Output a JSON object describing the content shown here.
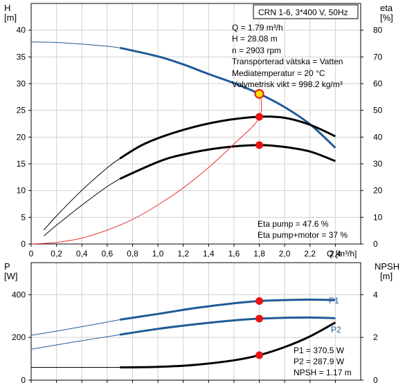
{
  "title_box": "CRN 1-6, 3*400 V, 50Hz",
  "info_lines": [
    "Q = 1.79 m³/h",
    "H = 28.08 m",
    "n = 2903 rpm",
    "Transporterad vätska = Vatten",
    "Mediatemperatur = 20 °C",
    "Volymetrisk vikt = 998.2 kg/m³"
  ],
  "eta_lines": [
    "Eta pump = 47.6 %",
    "Eta pump+motor = 37 %"
  ],
  "power_lines": [
    "P1 = 370.5 W",
    "P2 = 287.9 W",
    "NPSH = 1.17 m"
  ],
  "colors": {
    "blue": "#1f5a96",
    "black": "#000000",
    "red": "#e81414",
    "system": "#e83030",
    "frame": "#000000"
  },
  "chart_data": [
    {
      "type": "line",
      "axes": {
        "x": {
          "label": "Q [m³/h]",
          "range": [
            0,
            2.6
          ],
          "ticks": [
            0,
            0.2,
            0.4,
            0.6,
            0.8,
            1.0,
            1.2,
            1.4,
            1.6,
            1.8,
            2.0,
            2.2,
            2.4
          ],
          "tick_labels": [
            "0",
            "0,2",
            "0,4",
            "0,6",
            "0,8",
            "1,0",
            "1,2",
            "1,4",
            "1,6",
            "1,8",
            "2,0",
            "2,2",
            "2,4"
          ]
        },
        "y_left": {
          "label_top": "H",
          "label_unit": "[m]",
          "range": [
            0,
            45
          ],
          "ticks": [
            0,
            5,
            10,
            15,
            20,
            25,
            30,
            35,
            40
          ],
          "tick_labels": [
            "0",
            "5",
            "10",
            "15",
            "20",
            "25",
            "30",
            "35",
            "40"
          ]
        },
        "y_right": {
          "label_top": "eta",
          "label_unit": "[%]",
          "range": [
            0,
            90
          ],
          "ticks": [
            0,
            10,
            20,
            30,
            40,
            50,
            60,
            70,
            80
          ],
          "tick_labels": [
            "0",
            "10",
            "20",
            "30",
            "40",
            "50",
            "60",
            "70",
            "80"
          ]
        }
      },
      "grid": true,
      "series": [
        {
          "axis": "left",
          "color": "blue",
          "thin": [
            [
              0,
              37.8
            ],
            [
              0.2,
              37.7
            ],
            [
              0.4,
              37.4
            ],
            [
              0.6,
              37.0
            ],
            [
              0.7,
              36.7
            ]
          ],
          "thick": [
            [
              0.7,
              36.7
            ],
            [
              1.0,
              35.1
            ],
            [
              1.2,
              33.6
            ],
            [
              1.4,
              31.8
            ],
            [
              1.6,
              30.1
            ],
            [
              1.8,
              28.1
            ],
            [
              2.0,
              25.6
            ],
            [
              2.2,
              22.4
            ],
            [
              2.4,
              18.0
            ]
          ]
        },
        {
          "axis": "right",
          "color": "black",
          "thin": [
            [
              0.1,
              5.2
            ],
            [
              0.2,
              10.5
            ],
            [
              0.4,
              20.1
            ],
            [
              0.6,
              28.5
            ],
            [
              0.7,
              32.0
            ]
          ],
          "thick": [
            [
              0.7,
              32.0
            ],
            [
              0.9,
              37.6
            ],
            [
              1.2,
              42.7
            ],
            [
              1.5,
              46.0
            ],
            [
              1.8,
              47.6
            ],
            [
              2.0,
              47.2
            ],
            [
              2.2,
              44.6
            ],
            [
              2.4,
              40.3
            ]
          ]
        },
        {
          "axis": "right",
          "color": "black",
          "thin": [
            [
              0.1,
              3.0
            ],
            [
              0.2,
              7.0
            ],
            [
              0.4,
              14.5
            ],
            [
              0.6,
              21.5
            ],
            [
              0.7,
              24.4
            ]
          ],
          "thick": [
            [
              0.7,
              24.4
            ],
            [
              1.0,
              30.7
            ],
            [
              1.2,
              33.5
            ],
            [
              1.5,
              36.0
            ],
            [
              1.8,
              37.0
            ],
            [
              2.0,
              36.3
            ],
            [
              2.2,
              34.6
            ],
            [
              2.4,
              31.0
            ]
          ]
        },
        {
          "axis": "left",
          "color": "system",
          "thin": [
            [
              0,
              0
            ],
            [
              0.2,
              0.3
            ],
            [
              0.4,
              1.1
            ],
            [
              0.6,
              2.6
            ],
            [
              0.8,
              4.6
            ],
            [
              1.0,
              7.3
            ],
            [
              1.2,
              10.5
            ],
            [
              1.4,
              14.3
            ],
            [
              1.6,
              18.7
            ],
            [
              1.8,
              23.6
            ],
            [
              1.81,
              28.08
            ]
          ],
          "thick": []
        }
      ],
      "markers": [
        {
          "x": 1.8,
          "y": 28.08,
          "axis": "left",
          "style": "operating"
        },
        {
          "x": 1.8,
          "y": 47.6,
          "axis": "right",
          "style": "dot"
        },
        {
          "x": 1.8,
          "y": 37.0,
          "axis": "right",
          "style": "dot"
        }
      ]
    },
    {
      "type": "line",
      "axes": {
        "y_left": {
          "label_top": "P",
          "label_unit": "[W]",
          "range": [
            0,
            550
          ],
          "ticks": [
            0,
            200,
            400
          ],
          "tick_labels": [
            "0",
            "200",
            "400"
          ]
        },
        "y_right": {
          "label_top": "NPSH",
          "label_unit": "[m]",
          "range": [
            0,
            5.5
          ],
          "ticks": [
            0,
            2,
            4
          ],
          "tick_labels": [
            "0",
            "2",
            "4"
          ]
        }
      },
      "grid": true,
      "series_labels": [
        "P1",
        "P2"
      ],
      "series": [
        {
          "name": "P1",
          "axis": "left",
          "color": "blue",
          "thin": [
            [
              0,
              210
            ],
            [
              0.35,
              245
            ],
            [
              0.7,
              283
            ]
          ],
          "thick": [
            [
              0.7,
              283
            ],
            [
              1.0,
              310
            ],
            [
              1.3,
              338
            ],
            [
              1.6,
              360
            ],
            [
              1.8,
              370.5
            ],
            [
              2.0,
              375
            ],
            [
              2.2,
              377
            ],
            [
              2.4,
              375
            ]
          ]
        },
        {
          "name": "P2",
          "axis": "left",
          "color": "blue",
          "thin": [
            [
              0,
              145
            ],
            [
              0.35,
              180
            ],
            [
              0.7,
              213
            ]
          ],
          "thick": [
            [
              0.7,
              213
            ],
            [
              1.0,
              240
            ],
            [
              1.3,
              262
            ],
            [
              1.6,
              280
            ],
            [
              1.8,
              287.9
            ],
            [
              2.0,
              292
            ],
            [
              2.2,
              293
            ],
            [
              2.4,
              290
            ]
          ]
        },
        {
          "name": "NPSH",
          "axis": "right",
          "color": "black",
          "thin": [
            [
              0,
              0.6
            ],
            [
              0.7,
              0.6
            ]
          ],
          "thick": [
            [
              0.7,
              0.6
            ],
            [
              1.0,
              0.62
            ],
            [
              1.3,
              0.72
            ],
            [
              1.6,
              0.93
            ],
            [
              1.8,
              1.17
            ],
            [
              2.0,
              1.55
            ],
            [
              2.2,
              2.05
            ],
            [
              2.4,
              2.7
            ]
          ]
        }
      ],
      "markers": [
        {
          "x": 1.8,
          "y": 370.5,
          "axis": "left",
          "style": "dot"
        },
        {
          "x": 1.8,
          "y": 287.9,
          "axis": "left",
          "style": "dot"
        },
        {
          "x": 1.8,
          "y": 1.17,
          "axis": "right",
          "style": "dot"
        }
      ]
    }
  ]
}
